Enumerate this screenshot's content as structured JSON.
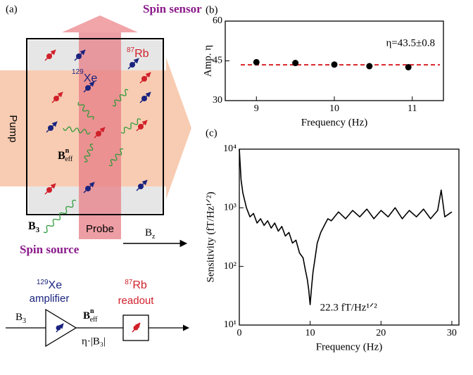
{
  "diagram": {
    "panel_label": "(a)",
    "top_label": "Spin sensor",
    "bottom_label": "Spin source",
    "rb": {
      "mass": "87",
      "symbol": "Rb"
    },
    "xe": {
      "mass": "129",
      "symbol": "Xe"
    },
    "pump": "Pump",
    "probe": "Probe",
    "b3": {
      "base": "B",
      "sub": "3"
    },
    "beff": {
      "base": "B",
      "sup": "n",
      "sub": "eff"
    },
    "bz": {
      "base": "B",
      "sub": "z"
    },
    "amplifier": "amplifier",
    "readout": "readout",
    "gain": "η·|B₃|"
  },
  "chart_data": [
    {
      "type": "scatter",
      "panel_label": "(b)",
      "xlabel": "Frequency (Hz)",
      "ylabel": "Amp. η",
      "x": [
        9,
        9.5,
        10,
        10.45,
        10.95
      ],
      "values": [
        44.5,
        44.2,
        43.6,
        43.0,
        42.6
      ],
      "color": "#000000",
      "xlim": [
        8.6,
        11.4
      ],
      "ylim": [
        30,
        60
      ],
      "xticks": [
        9,
        10,
        11
      ],
      "yticks": [
        30,
        45,
        60
      ],
      "reference_line": {
        "value": 43.5,
        "color": "#d9222a",
        "label": "η=43.5±0.8"
      }
    },
    {
      "type": "line",
      "panel_label": "(c)",
      "xlabel": "Frequency (Hz)",
      "ylabel": "Sensitivity (fT/Hz¹ᐟ²)",
      "x": [
        0,
        0.25,
        0.5,
        1,
        1.5,
        2,
        2.5,
        3,
        3.5,
        4,
        4.5,
        5,
        5.5,
        6,
        6.5,
        7,
        7.5,
        8,
        8.5,
        9,
        9.3,
        9.6,
        9.8,
        10,
        10.2,
        10.4,
        10.7,
        11,
        11.5,
        12,
        12.5,
        13,
        14,
        15,
        16,
        17,
        18,
        19,
        20,
        21,
        22,
        23,
        24,
        25,
        26,
        27,
        28,
        28.5,
        29,
        30
      ],
      "values": [
        10000,
        3000,
        1800,
        1000,
        700,
        800,
        550,
        650,
        500,
        600,
        450,
        550,
        400,
        480,
        330,
        380,
        250,
        280,
        170,
        140,
        90,
        60,
        40,
        22.3,
        45,
        80,
        140,
        250,
        380,
        500,
        650,
        600,
        850,
        650,
        900,
        700,
        950,
        650,
        900,
        700,
        1000,
        650,
        900,
        700,
        950,
        650,
        900,
        2000,
        700,
        850
      ],
      "color": "#000000",
      "log_y": true,
      "xlim": [
        0,
        31
      ],
      "ylim": [
        10,
        10000
      ],
      "xticks": [
        0,
        10,
        20,
        30
      ],
      "yticks": [
        {
          "value": 10,
          "label": "10¹"
        },
        {
          "value": 100,
          "label": "10²"
        },
        {
          "value": 1000,
          "label": "10³"
        },
        {
          "value": 10000,
          "label": "10⁴"
        }
      ],
      "annotation": "22.3 fT/Hz¹ᐟ²"
    }
  ]
}
